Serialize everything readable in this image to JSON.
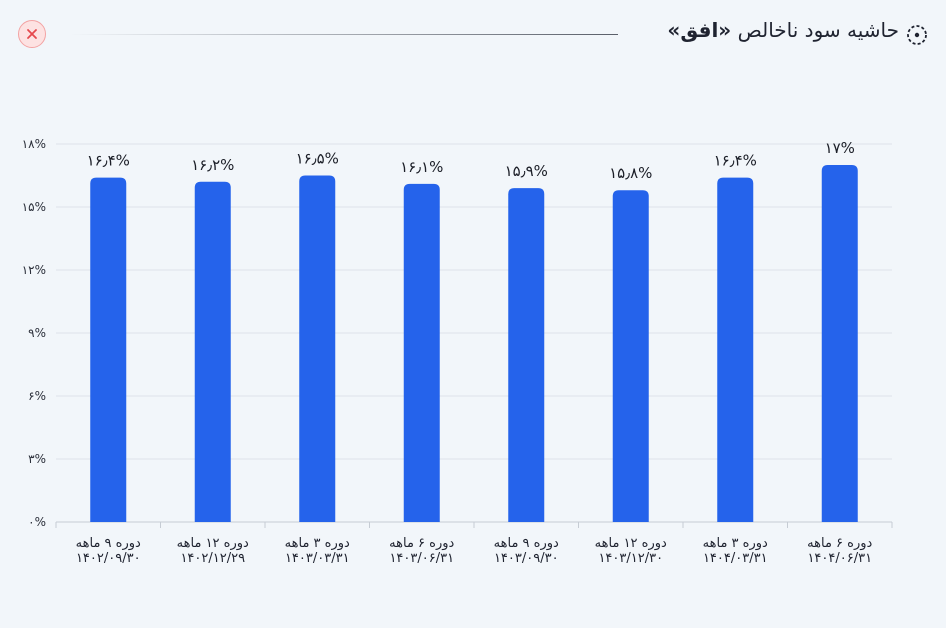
{
  "header": {
    "title_prefix": "حاشیه سود ناخالص ",
    "title_symbol": "«افق»",
    "close_icon": "close-icon",
    "title_icon": "target-icon"
  },
  "colors": {
    "bar": "#2563eb",
    "grid": "#dde3ea",
    "axis": "#c6ccd4",
    "close_bg": "#fde2e2",
    "close_stroke": "#e5484d"
  },
  "chart_data": {
    "type": "bar",
    "title": "حاشیه سود ناخالص «افق»",
    "xlabel": "",
    "ylabel": "",
    "ylim": [
      0,
      18
    ],
    "yticks": [
      0,
      3,
      6,
      9,
      12,
      15,
      18
    ],
    "ytick_labels": [
      "۰%",
      "۳%",
      "۶%",
      "۹%",
      "۱۲%",
      "۱۵%",
      "۱۸%"
    ],
    "grid": true,
    "categories": [
      {
        "line1": "دوره ۹ ماهه",
        "line2": "۱۴۰۲/۰۹/۳۰"
      },
      {
        "line1": "دوره ۱۲ ماهه",
        "line2": "۱۴۰۲/۱۲/۲۹"
      },
      {
        "line1": "دوره ۳ ماهه",
        "line2": "۱۴۰۳/۰۳/۳۱"
      },
      {
        "line1": "دوره ۶ ماهه",
        "line2": "۱۴۰۳/۰۶/۳۱"
      },
      {
        "line1": "دوره ۹ ماهه",
        "line2": "۱۴۰۳/۰۹/۳۰"
      },
      {
        "line1": "دوره ۱۲ ماهه",
        "line2": "۱۴۰۳/۱۲/۳۰"
      },
      {
        "line1": "دوره ۳ ماهه",
        "line2": "۱۴۰۴/۰۳/۳۱"
      },
      {
        "line1": "دوره ۶ ماهه",
        "line2": "۱۴۰۴/۰۶/۳۱"
      }
    ],
    "values": [
      16.4,
      16.2,
      16.5,
      16.1,
      15.9,
      15.8,
      16.4,
      17
    ],
    "value_labels": [
      "۱۶٫۴%",
      "۱۶٫۲%",
      "۱۶٫۵%",
      "۱۶٫۱%",
      "۱۵٫۹%",
      "۱۵٫۸%",
      "۱۶٫۴%",
      "۱۷%"
    ]
  }
}
